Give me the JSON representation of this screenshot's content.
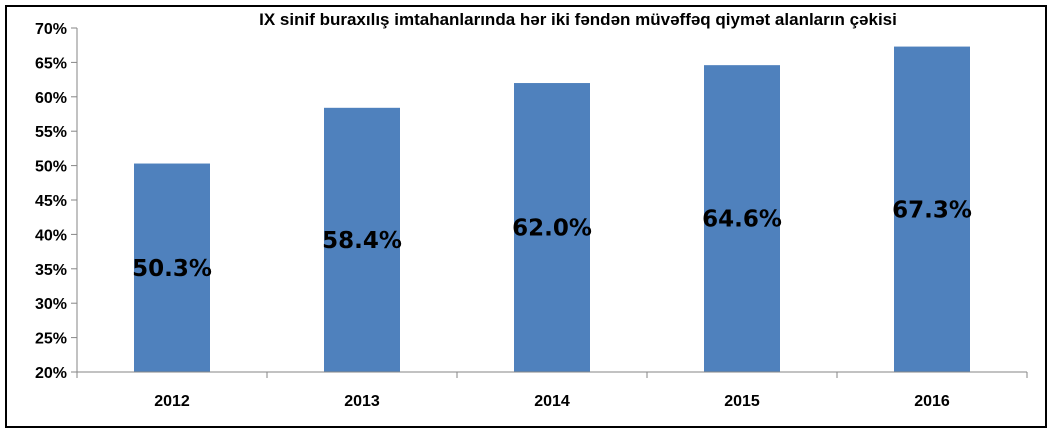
{
  "chart_data": {
    "type": "bar",
    "title": "IX sinif buraxılış imtahanlarında hər iki fəndən müvəffəq qiymət alanların çəkisi",
    "categories": [
      "2012",
      "2013",
      "2014",
      "2015",
      "2016"
    ],
    "values": [
      50.3,
      58.4,
      62.0,
      64.6,
      67.3
    ],
    "data_labels": [
      "50.3%",
      "58.4%",
      "62.0%",
      "64.6%",
      "67.3%"
    ],
    "ylim": [
      20,
      70
    ],
    "yticks": [
      20,
      25,
      30,
      35,
      40,
      45,
      50,
      55,
      60,
      65,
      70
    ],
    "ytick_labels": [
      "20%",
      "25%",
      "30%",
      "35%",
      "40%",
      "45%",
      "50%",
      "55%",
      "60%",
      "65%",
      "70%"
    ],
    "xlabel": "",
    "ylabel": "",
    "grid": false,
    "legend": "none",
    "bar_color": "#4F81BD"
  }
}
